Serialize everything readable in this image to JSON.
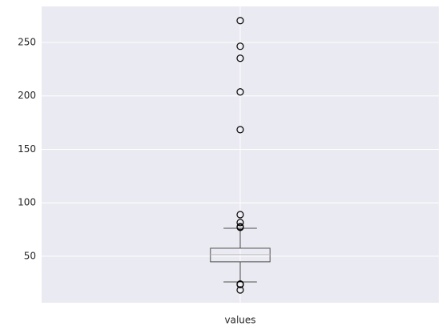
{
  "chart_data": {
    "type": "box",
    "categories": [
      "values"
    ],
    "boxes": [
      {
        "whislo": 26,
        "q1": 44.8,
        "med": 51.5,
        "q3": 57.5,
        "whishi": 76.2,
        "fliers": [
          270.4,
          246.4,
          235.2,
          203.7,
          168.4,
          88.9,
          81.5,
          77.7,
          77,
          24,
          23.5,
          18.5
        ]
      }
    ],
    "ylim": [
      6.5,
      283.7
    ],
    "yticks": [
      50,
      100,
      150,
      200,
      250
    ],
    "grid": true,
    "color": "#4d4d4d",
    "median_color": "#bfbfbf"
  }
}
